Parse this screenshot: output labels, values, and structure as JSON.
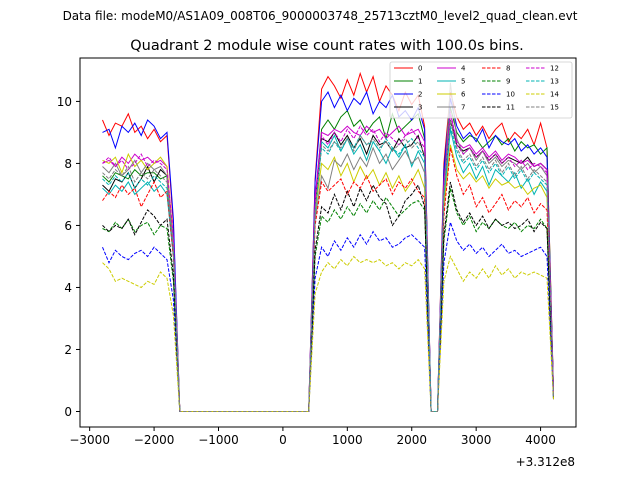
{
  "chart_data": {
    "type": "line",
    "suptitle": "Data file: modeM0/AS1A09_008T06_9000003748_25713cztM0_level2_quad_clean.evt",
    "title": "Quadrant 2 module wise count rates with 100.0s bins.",
    "xlabel": "",
    "ylabel": "",
    "x_offset_label": "+3.312e8",
    "xlim": [
      -3150,
      4550
    ],
    "ylim": [
      -0.5,
      11.4
    ],
    "xticks": [
      -3000,
      -2000,
      -1000,
      0,
      1000,
      2000,
      3000,
      4000
    ],
    "xtick_labels": [
      "−3000",
      "−2000",
      "−1000",
      "0",
      "1000",
      "2000",
      "3000",
      "4000"
    ],
    "yticks": [
      0,
      2,
      4,
      6,
      8,
      10
    ],
    "ytick_labels": [
      "0",
      "2",
      "4",
      "6",
      "8",
      "10"
    ],
    "grid": false,
    "legend_position": "top-right",
    "x": [
      -2800,
      -2700,
      -2600,
      -2500,
      -2400,
      -2300,
      -2200,
      -2100,
      -2000,
      -1900,
      -1800,
      -1700,
      -1600,
      -1500,
      400,
      500,
      600,
      700,
      800,
      900,
      1000,
      1100,
      1200,
      1300,
      1400,
      1500,
      1600,
      1700,
      1800,
      1900,
      2000,
      2100,
      2200,
      2300,
      2400,
      2500,
      2600,
      2700,
      2800,
      2900,
      3000,
      3100,
      3200,
      3300,
      3400,
      3500,
      3600,
      3700,
      3800,
      3900,
      4000,
      4100,
      4200
    ],
    "series": [
      {
        "name": "0",
        "color": "#ff0000",
        "dash": "solid",
        "values": [
          9.4,
          8.9,
          9.3,
          9.2,
          9.6,
          9.0,
          9.2,
          8.8,
          9.1,
          8.7,
          8.9,
          6.0,
          0.0,
          0.0,
          0.0,
          7.5,
          10.4,
          10.8,
          10.5,
          10.1,
          10.7,
          10.2,
          10.9,
          10.3,
          10.8,
          10.0,
          10.5,
          10.2,
          9.7,
          10.3,
          9.9,
          10.2,
          9.2,
          0.0,
          0.0,
          8.0,
          10.3,
          9.5,
          9.1,
          9.3,
          8.9,
          9.2,
          8.8,
          9.1,
          9.3,
          8.7,
          9.0,
          8.8,
          9.1,
          8.6,
          9.3,
          8.5,
          0.7
        ]
      },
      {
        "name": "1",
        "color": "#008000",
        "dash": "solid",
        "values": [
          7.6,
          7.4,
          7.7,
          7.6,
          7.5,
          7.8,
          7.6,
          7.7,
          7.7,
          7.5,
          7.6,
          5.5,
          0.0,
          0.0,
          0.0,
          6.8,
          9.1,
          9.4,
          9.1,
          9.5,
          9.7,
          9.2,
          9.4,
          9.0,
          9.3,
          9.5,
          8.8,
          9.6,
          9.0,
          9.2,
          9.4,
          9.6,
          8.8,
          0.0,
          0.0,
          7.5,
          9.8,
          9.0,
          8.7,
          8.9,
          8.8,
          8.5,
          8.7,
          8.9,
          8.6,
          8.8,
          8.4,
          8.7,
          8.5,
          8.6,
          8.3,
          8.5,
          0.6
        ]
      },
      {
        "name": "2",
        "color": "#0000ff",
        "dash": "solid",
        "values": [
          9.0,
          9.1,
          8.5,
          9.2,
          9.0,
          9.3,
          8.9,
          9.4,
          9.2,
          8.8,
          9.0,
          6.2,
          0.0,
          0.0,
          0.0,
          7.4,
          10.0,
          10.3,
          9.8,
          10.2,
          9.7,
          10.1,
          9.9,
          10.3,
          9.6,
          10.0,
          9.8,
          10.2,
          9.5,
          9.7,
          9.4,
          9.8,
          9.1,
          0.0,
          0.0,
          7.8,
          10.1,
          9.2,
          8.8,
          9.0,
          8.7,
          9.1,
          8.5,
          8.9,
          8.7,
          8.6,
          8.8,
          8.4,
          8.6,
          8.3,
          8.5,
          8.2,
          0.6
        ]
      },
      {
        "name": "3",
        "color": "#000000",
        "dash": "solid",
        "values": [
          7.3,
          7.1,
          7.5,
          7.4,
          7.7,
          7.2,
          7.5,
          7.9,
          7.4,
          7.8,
          7.6,
          5.3,
          0.0,
          0.0,
          0.0,
          6.5,
          8.8,
          8.7,
          9.0,
          8.6,
          8.9,
          8.5,
          8.8,
          8.3,
          8.9,
          8.6,
          8.7,
          8.4,
          8.8,
          8.5,
          8.6,
          8.9,
          8.2,
          0.0,
          0.0,
          7.2,
          9.4,
          8.6,
          8.4,
          8.5,
          8.2,
          8.4,
          8.1,
          8.3,
          8.0,
          8.2,
          8.1,
          8.0,
          8.2,
          7.9,
          8.0,
          7.8,
          0.6
        ]
      },
      {
        "name": "4",
        "color": "#cc00cc",
        "dash": "solid",
        "values": [
          8.0,
          8.1,
          7.9,
          8.2,
          8.0,
          8.3,
          8.1,
          8.2,
          8.0,
          8.1,
          7.9,
          5.5,
          0.0,
          0.0,
          0.0,
          6.9,
          9.0,
          8.9,
          9.1,
          9.0,
          9.2,
          9.0,
          8.9,
          9.2,
          9.0,
          9.1,
          8.8,
          9.0,
          9.2,
          8.9,
          9.0,
          9.1,
          8.7,
          0.0,
          0.0,
          7.4,
          9.6,
          8.7,
          8.5,
          8.6,
          8.3,
          8.5,
          8.2,
          8.4,
          8.1,
          8.3,
          8.2,
          8.0,
          8.1,
          7.9,
          8.0,
          7.8,
          0.6
        ]
      },
      {
        "name": "5",
        "color": "#00b3b3",
        "dash": "solid",
        "values": [
          7.2,
          7.0,
          7.3,
          7.1,
          7.4,
          7.0,
          7.2,
          7.4,
          7.1,
          7.3,
          7.0,
          5.0,
          0.0,
          0.0,
          0.0,
          6.3,
          8.7,
          8.5,
          8.9,
          8.4,
          8.8,
          8.3,
          8.6,
          8.1,
          8.7,
          8.4,
          8.0,
          8.5,
          8.2,
          8.6,
          7.9,
          8.4,
          8.0,
          0.0,
          0.0,
          6.8,
          9.1,
          8.2,
          7.7,
          8.0,
          7.5,
          7.9,
          7.3,
          7.8,
          7.6,
          7.4,
          7.7,
          7.2,
          7.5,
          7.0,
          7.4,
          7.1,
          0.5
        ]
      },
      {
        "name": "6",
        "color": "#cccc00",
        "dash": "solid",
        "values": [
          8.1,
          8.0,
          8.2,
          7.7,
          8.3,
          7.9,
          8.1,
          7.8,
          8.0,
          8.2,
          7.9,
          5.4,
          0.0,
          0.0,
          0.0,
          6.4,
          8.0,
          7.8,
          8.2,
          7.6,
          8.0,
          7.4,
          7.9,
          7.5,
          7.8,
          7.3,
          7.7,
          7.2,
          7.6,
          7.1,
          7.4,
          7.8,
          7.2,
          0.0,
          0.0,
          6.6,
          8.6,
          7.8,
          7.5,
          7.7,
          7.4,
          7.6,
          7.2,
          7.5,
          7.3,
          7.4,
          7.2,
          7.3,
          7.0,
          7.2,
          7.3,
          6.9,
          0.5
        ]
      },
      {
        "name": "7",
        "color": "#808080",
        "dash": "solid",
        "values": [
          7.9,
          7.7,
          8.0,
          7.6,
          7.8,
          8.1,
          7.7,
          8.0,
          7.8,
          7.9,
          7.6,
          5.3,
          0.0,
          0.0,
          0.0,
          6.2,
          7.6,
          7.2,
          8.1,
          7.9,
          8.3,
          7.8,
          8.2,
          7.9,
          8.5,
          8.0,
          8.3,
          7.8,
          8.1,
          8.4,
          8.0,
          8.2,
          7.7,
          0.0,
          0.0,
          7.0,
          10.6,
          8.8,
          8.3,
          8.5,
          8.1,
          8.4,
          8.0,
          8.2,
          7.9,
          8.1,
          8.0,
          7.8,
          8.0,
          7.7,
          7.9,
          7.6,
          0.5
        ]
      },
      {
        "name": "8",
        "color": "#ff0000",
        "dash": "dashed",
        "values": [
          6.8,
          7.1,
          6.9,
          7.3,
          7.0,
          7.2,
          6.6,
          7.0,
          7.4,
          6.9,
          7.1,
          5.0,
          0.0,
          0.0,
          0.0,
          6.0,
          7.4,
          7.1,
          7.3,
          7.5,
          7.0,
          7.4,
          7.2,
          7.6,
          7.1,
          7.3,
          7.5,
          7.0,
          7.4,
          7.2,
          7.5,
          7.1,
          6.9,
          0.0,
          0.0,
          6.3,
          8.5,
          7.6,
          7.0,
          7.3,
          6.6,
          6.9,
          6.4,
          6.7,
          7.0,
          6.5,
          6.8,
          6.6,
          6.9,
          6.4,
          6.7,
          6.5,
          0.5
        ]
      },
      {
        "name": "9",
        "color": "#008000",
        "dash": "dashed",
        "values": [
          5.9,
          5.8,
          6.1,
          5.9,
          6.2,
          5.8,
          6.0,
          6.1,
          5.7,
          6.0,
          5.9,
          4.2,
          0.0,
          0.0,
          0.0,
          5.0,
          6.3,
          6.1,
          6.5,
          6.2,
          6.6,
          6.3,
          6.7,
          6.4,
          6.8,
          6.5,
          6.9,
          6.6,
          6.3,
          6.5,
          6.7,
          6.8,
          6.5,
          0.0,
          0.0,
          5.5,
          7.2,
          6.4,
          6.0,
          6.3,
          5.8,
          6.1,
          5.9,
          6.2,
          6.0,
          5.9,
          6.1,
          5.8,
          6.0,
          5.9,
          6.2,
          5.9,
          0.4
        ]
      },
      {
        "name": "10",
        "color": "#0000ff",
        "dash": "dashed",
        "values": [
          5.3,
          4.8,
          5.2,
          5.0,
          4.9,
          5.1,
          5.2,
          5.0,
          5.3,
          5.1,
          4.9,
          3.6,
          0.0,
          0.0,
          0.0,
          4.3,
          5.3,
          5.0,
          5.5,
          5.2,
          5.6,
          5.3,
          5.7,
          5.4,
          5.8,
          5.5,
          5.6,
          5.3,
          5.4,
          5.6,
          5.7,
          5.5,
          5.3,
          0.0,
          0.0,
          4.8,
          6.1,
          5.5,
          5.2,
          5.4,
          5.1,
          5.3,
          5.0,
          5.2,
          5.4,
          5.1,
          5.2,
          5.0,
          5.1,
          5.2,
          5.3,
          5.0,
          0.4
        ]
      },
      {
        "name": "11",
        "color": "#000000",
        "dash": "dashed",
        "values": [
          6.0,
          5.8,
          6.0,
          5.9,
          6.2,
          5.7,
          6.1,
          6.5,
          6.3,
          6.0,
          6.2,
          4.4,
          0.0,
          0.0,
          0.0,
          5.2,
          6.6,
          6.4,
          7.0,
          6.5,
          7.1,
          6.6,
          7.2,
          6.8,
          7.3,
          6.9,
          6.7,
          6.0,
          6.3,
          6.8,
          7.0,
          7.3,
          6.6,
          0.0,
          0.0,
          5.7,
          7.4,
          6.5,
          6.1,
          6.4,
          6.0,
          6.3,
          5.9,
          6.2,
          6.0,
          6.1,
          5.9,
          6.0,
          6.2,
          5.8,
          6.1,
          5.9,
          0.4
        ]
      },
      {
        "name": "12",
        "color": "#cc00cc",
        "dash": "dashed",
        "values": [
          8.0,
          8.2,
          7.9,
          8.1,
          7.8,
          8.0,
          8.3,
          7.9,
          8.1,
          8.0,
          7.8,
          5.6,
          0.0,
          0.0,
          0.0,
          6.8,
          8.9,
          8.6,
          9.0,
          8.7,
          9.1,
          8.8,
          9.2,
          8.9,
          9.1,
          8.7,
          9.0,
          8.8,
          8.6,
          8.9,
          9.1,
          8.8,
          8.5,
          0.0,
          0.0,
          7.3,
          9.7,
          8.6,
          8.3,
          8.5,
          8.2,
          8.4,
          8.1,
          8.3,
          8.0,
          8.2,
          7.9,
          8.1,
          7.8,
          8.0,
          7.9,
          7.7,
          0.6
        ]
      },
      {
        "name": "13",
        "color": "#00b3b3",
        "dash": "dashed",
        "values": [
          7.5,
          7.3,
          7.6,
          7.4,
          7.7,
          7.2,
          7.5,
          7.3,
          7.6,
          7.4,
          7.2,
          5.2,
          0.0,
          0.0,
          0.0,
          6.4,
          8.5,
          8.3,
          8.7,
          8.4,
          8.8,
          8.5,
          8.9,
          8.6,
          8.7,
          8.4,
          8.8,
          8.5,
          8.3,
          8.6,
          8.8,
          8.5,
          8.2,
          0.0,
          0.0,
          7.0,
          9.2,
          8.4,
          8.0,
          8.2,
          7.8,
          8.1,
          7.7,
          8.0,
          7.6,
          7.9,
          7.5,
          7.8,
          7.4,
          7.7,
          7.5,
          7.3,
          0.5
        ]
      },
      {
        "name": "14",
        "color": "#cccc00",
        "dash": "dashed",
        "values": [
          4.8,
          4.6,
          4.2,
          4.3,
          4.2,
          4.1,
          4.0,
          4.2,
          4.1,
          4.5,
          4.3,
          3.1,
          0.0,
          0.0,
          0.0,
          3.8,
          4.5,
          4.8,
          4.6,
          4.9,
          4.7,
          5.0,
          4.8,
          4.9,
          4.8,
          4.9,
          4.7,
          4.8,
          4.6,
          4.8,
          4.7,
          4.9,
          4.6,
          0.0,
          0.0,
          4.2,
          5.0,
          4.6,
          4.2,
          4.5,
          4.3,
          4.6,
          4.3,
          4.7,
          4.4,
          4.6,
          4.3,
          4.5,
          4.4,
          4.5,
          4.4,
          4.3,
          0.4
        ]
      },
      {
        "name": "15",
        "color": "#808080",
        "dash": "dashed",
        "values": [
          7.7,
          7.5,
          7.8,
          7.6,
          7.9,
          7.4,
          7.7,
          7.5,
          7.8,
          7.6,
          7.4,
          5.2,
          0.0,
          0.0,
          0.0,
          6.5,
          8.6,
          8.4,
          8.7,
          8.5,
          8.8,
          8.4,
          8.9,
          8.6,
          8.8,
          8.5,
          8.7,
          8.4,
          8.6,
          8.8,
          8.5,
          8.7,
          8.3,
          0.0,
          0.0,
          7.1,
          9.4,
          8.5,
          8.1,
          8.3,
          7.9,
          8.2,
          7.8,
          8.1,
          7.7,
          8.0,
          7.6,
          7.9,
          7.5,
          7.8,
          7.6,
          7.4,
          0.5
        ]
      }
    ]
  }
}
